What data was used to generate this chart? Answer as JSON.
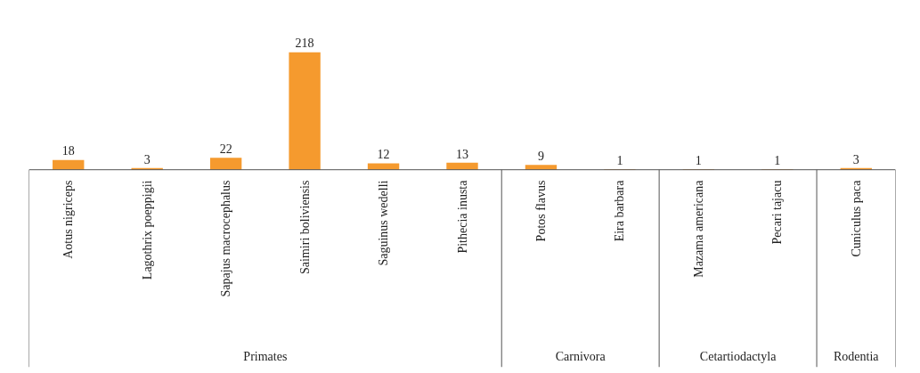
{
  "chart_data": {
    "type": "bar",
    "categories": [
      "Aotus nigriceps",
      "Lagothrix poeppigii",
      "Sapajus macrocephalus",
      "Saimiri boliviensis",
      "Saguinus wedelli",
      "Pithecia inusta",
      "Potos flavus",
      "Eira barbara",
      "Mazama americana",
      "Pecari tajacu",
      "Cuniculus paca"
    ],
    "values": [
      18,
      3,
      22,
      218,
      12,
      13,
      9,
      1,
      1,
      1,
      3
    ],
    "color": "#f59a2e",
    "data_labels": true,
    "annotations": [
      "Primates",
      "Carnivora",
      "Cetartiodactyla",
      "Rodentia"
    ]
  }
}
